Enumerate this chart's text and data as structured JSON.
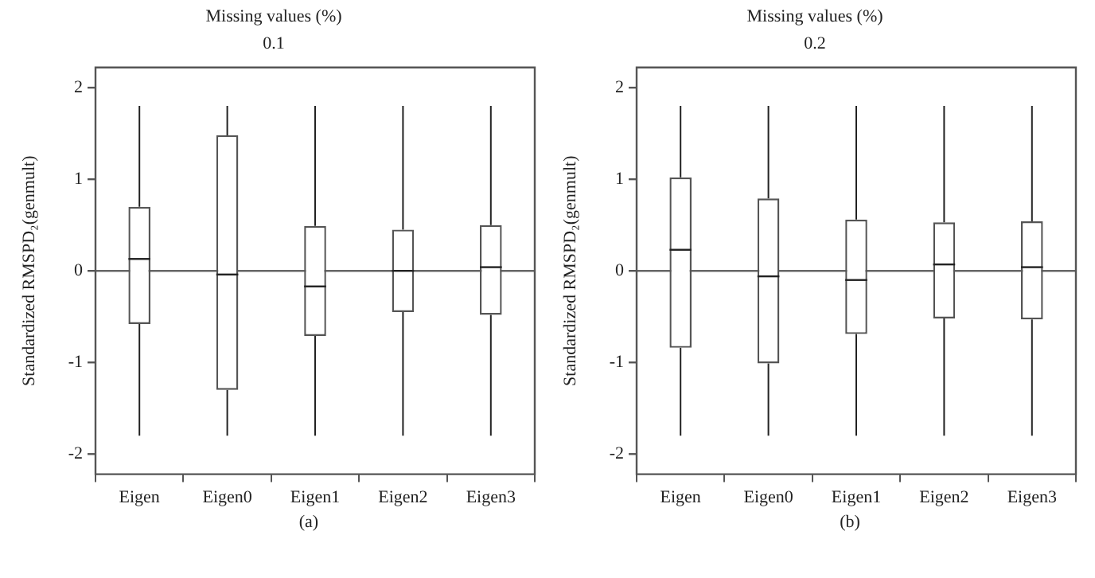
{
  "chart_data": [
    {
      "type": "box",
      "title": "Missing values (%)",
      "subtitle": "0.1",
      "ylabel": "Standardized RMSPD₂(genmult)",
      "categories": [
        "Eigen",
        "Eigen0",
        "Eigen1",
        "Eigen2",
        "Eigen3"
      ],
      "boxes": [
        {
          "low": -1.8,
          "q1": -0.58,
          "median": 0.13,
          "q3": 0.7,
          "high": 1.8
        },
        {
          "low": -1.8,
          "q1": -1.3,
          "median": -0.04,
          "q3": 1.48,
          "high": 1.8
        },
        {
          "low": -1.8,
          "q1": -0.71,
          "median": -0.17,
          "q3": 0.49,
          "high": 1.8
        },
        {
          "low": -1.8,
          "q1": -0.45,
          "median": 0.0,
          "q3": 0.45,
          "high": 1.8
        },
        {
          "low": -1.8,
          "q1": -0.48,
          "median": 0.04,
          "q3": 0.5,
          "high": 1.8
        }
      ],
      "ylim": [
        -2.22,
        2.22
      ],
      "yticks": [
        -2,
        -1,
        0,
        1,
        2
      ],
      "ref_lines": [
        {
          "axis": "y",
          "value": 0
        }
      ],
      "annotations": [
        "(a)"
      ]
    },
    {
      "type": "box",
      "title": "Missing values (%)",
      "subtitle": "0.2",
      "ylabel": "Standardized RMSPD₂(genmult)",
      "categories": [
        "Eigen",
        "Eigen0",
        "Eigen1",
        "Eigen2",
        "Eigen3"
      ],
      "boxes": [
        {
          "low": -1.8,
          "q1": -0.84,
          "median": 0.23,
          "q3": 1.02,
          "high": 1.8
        },
        {
          "low": -1.8,
          "q1": -1.01,
          "median": -0.06,
          "q3": 0.79,
          "high": 1.8
        },
        {
          "low": -1.8,
          "q1": -0.69,
          "median": -0.1,
          "q3": 0.56,
          "high": 1.8
        },
        {
          "low": -1.8,
          "q1": -0.52,
          "median": 0.07,
          "q3": 0.53,
          "high": 1.8
        },
        {
          "low": -1.8,
          "q1": -0.53,
          "median": 0.04,
          "q3": 0.54,
          "high": 1.8
        }
      ],
      "ylim": [
        -2.22,
        2.22
      ],
      "yticks": [
        -2,
        -1,
        0,
        1,
        2
      ],
      "ref_lines": [
        {
          "axis": "y",
          "value": 0
        }
      ],
      "annotations": [
        "(b)"
      ]
    }
  ]
}
